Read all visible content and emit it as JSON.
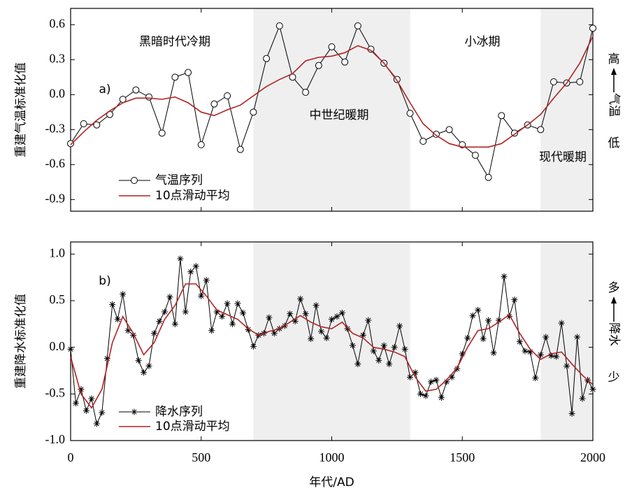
{
  "chart_data": [
    {
      "type": "line",
      "y_label": "重建气温标准化值",
      "annotations": [
        "黑暗时代冷期",
        "中世纪暖期",
        "小冰期",
        "现代暖期",
        "a)"
      ],
      "side_label": {
        "high": "高",
        "name": "气温",
        "low": "低"
      },
      "xlim": [
        0,
        2000
      ],
      "xticks": [
        0,
        500,
        1000,
        1500,
        2000
      ],
      "show_xtick_labels": false,
      "ylim": [
        -1.0,
        0.74
      ],
      "yticks": [
        0.6,
        0.3,
        {
          "value": 0,
          "label": "0.0"
        },
        -0.3,
        -0.6,
        -0.9
      ],
      "shaded_periods": [
        {
          "start": 700,
          "end": 1300
        },
        {
          "start": 1800,
          "end": 2000
        }
      ],
      "series": [
        {
          "name": "气温序列",
          "color": "#000000",
          "marker": "circle",
          "x": [
            0,
            50,
            100,
            150,
            200,
            250,
            300,
            350,
            400,
            450,
            500,
            550,
            600,
            650,
            700,
            750,
            800,
            850,
            900,
            950,
            1000,
            1050,
            1100,
            1150,
            1200,
            1250,
            1300,
            1350,
            1400,
            1450,
            1500,
            1550,
            1600,
            1650,
            1700,
            1750,
            1800,
            1850,
            1900,
            1950,
            2000
          ],
          "values": [
            -0.42,
            -0.25,
            -0.26,
            -0.17,
            -0.04,
            0.04,
            -0.02,
            -0.33,
            0.15,
            0.19,
            -0.43,
            -0.08,
            -0.01,
            -0.47,
            -0.15,
            0.31,
            0.59,
            0.15,
            0.02,
            0.25,
            0.41,
            0.28,
            0.59,
            0.39,
            0.27,
            0.13,
            -0.16,
            -0.4,
            -0.34,
            -0.3,
            -0.43,
            -0.52,
            -0.71,
            -0.18,
            -0.33,
            -0.26,
            -0.3,
            0.11,
            0.1,
            0.11,
            0.57
          ]
        },
        {
          "name": "10点滑动平均",
          "color": "#b22222",
          "marker": "none",
          "x": [
            0,
            50,
            100,
            150,
            200,
            250,
            300,
            350,
            400,
            450,
            500,
            550,
            600,
            650,
            700,
            750,
            800,
            850,
            900,
            950,
            1000,
            1050,
            1100,
            1150,
            1200,
            1250,
            1300,
            1350,
            1400,
            1450,
            1500,
            1550,
            1600,
            1650,
            1700,
            1750,
            1800,
            1850,
            1900,
            1950,
            2000
          ],
          "values": [
            -0.43,
            -0.32,
            -0.22,
            -0.14,
            -0.07,
            -0.03,
            -0.03,
            -0.04,
            -0.02,
            -0.07,
            -0.15,
            -0.18,
            -0.13,
            -0.09,
            -0.01,
            0.07,
            0.13,
            0.18,
            0.29,
            0.32,
            0.33,
            0.36,
            0.42,
            0.38,
            0.27,
            0.12,
            -0.07,
            -0.25,
            -0.35,
            -0.42,
            -0.45,
            -0.45,
            -0.45,
            -0.42,
            -0.34,
            -0.26,
            -0.17,
            -0.03,
            0.1,
            0.27,
            0.5
          ]
        }
      ]
    },
    {
      "type": "line",
      "x_label": "年代/AD",
      "y_label": "重建降水标准化值",
      "annotations": [
        "b)"
      ],
      "side_label": {
        "high": "多",
        "name": "降水",
        "low": "少"
      },
      "xlim": [
        0,
        2000
      ],
      "xticks": [
        0,
        500,
        1000,
        1500,
        2000
      ],
      "show_xtick_labels": true,
      "ylim": [
        -1.0,
        1.13
      ],
      "yticks": [
        {
          "value": 1,
          "label": "1.0"
        },
        0.5,
        {
          "value": 0,
          "label": "0.0"
        },
        -0.5,
        {
          "value": -1,
          "label": "-1.0"
        }
      ],
      "shaded_periods": [
        {
          "start": 700,
          "end": 1300
        },
        {
          "start": 1800,
          "end": 2000
        }
      ],
      "series": [
        {
          "name": "降水序列",
          "color": "#000000",
          "marker": "star",
          "x": [
            0,
            20,
            40,
            60,
            80,
            100,
            120,
            140,
            160,
            180,
            200,
            220,
            240,
            260,
            280,
            300,
            320,
            340,
            360,
            380,
            400,
            420,
            440,
            460,
            480,
            500,
            520,
            540,
            560,
            580,
            600,
            620,
            640,
            660,
            680,
            700,
            720,
            740,
            760,
            780,
            800,
            820,
            840,
            860,
            880,
            900,
            920,
            940,
            960,
            980,
            1000,
            1020,
            1040,
            1060,
            1080,
            1100,
            1120,
            1140,
            1160,
            1180,
            1200,
            1220,
            1240,
            1260,
            1280,
            1300,
            1320,
            1340,
            1360,
            1380,
            1400,
            1420,
            1440,
            1460,
            1480,
            1500,
            1520,
            1540,
            1560,
            1580,
            1600,
            1620,
            1640,
            1660,
            1680,
            1700,
            1720,
            1740,
            1760,
            1780,
            1800,
            1820,
            1840,
            1860,
            1880,
            1900,
            1920,
            1940,
            1960,
            1980,
            2000
          ],
          "values": [
            -0.02,
            -0.6,
            -0.45,
            -0.68,
            -0.55,
            -0.82,
            -0.7,
            -0.12,
            0.46,
            0.3,
            0.57,
            0.18,
            0.13,
            -0.14,
            -0.27,
            -0.2,
            0.15,
            0.28,
            0.38,
            0.54,
            0.25,
            0.95,
            0.38,
            0.81,
            0.87,
            0.55,
            0.72,
            0.18,
            0.38,
            0.33,
            0.47,
            0.25,
            0.47,
            0.37,
            0.19,
            0.01,
            0.13,
            0.15,
            0.32,
            0.15,
            0.2,
            0.23,
            0.36,
            0.28,
            0.52,
            0.36,
            0.09,
            0.45,
            0.17,
            0.1,
            0.3,
            0.33,
            0.37,
            0.2,
            0.02,
            -0.18,
            0.13,
            0.29,
            -0.04,
            -0.14,
            0.02,
            -0.18,
            0.0,
            0.23,
            -0.02,
            -0.32,
            -0.27,
            -0.5,
            -0.52,
            -0.37,
            -0.35,
            -0.54,
            -0.37,
            -0.32,
            -0.23,
            -0.07,
            0.1,
            0.34,
            0.4,
            0.09,
            0.29,
            -0.06,
            0.29,
            0.76,
            0.33,
            0.51,
            0.06,
            -0.04,
            -0.05,
            -0.33,
            -0.08,
            0.11,
            -0.09,
            -0.1,
            0.26,
            -0.2,
            -0.71,
            0.11,
            -0.55,
            -0.35,
            -0.45
          ]
        },
        {
          "name": "10点滑动平均",
          "color": "#b22222",
          "marker": "none",
          "x": [
            0,
            40,
            80,
            120,
            160,
            200,
            240,
            280,
            320,
            360,
            400,
            440,
            480,
            520,
            560,
            600,
            640,
            680,
            720,
            760,
            800,
            840,
            880,
            920,
            960,
            1000,
            1040,
            1080,
            1120,
            1160,
            1200,
            1240,
            1280,
            1320,
            1360,
            1400,
            1440,
            1480,
            1520,
            1560,
            1600,
            1640,
            1680,
            1720,
            1760,
            1800,
            1840,
            1880,
            1920,
            1960,
            2000
          ],
          "values": [
            -0.1,
            -0.5,
            -0.65,
            -0.45,
            0.05,
            0.33,
            0.15,
            -0.08,
            0.05,
            0.3,
            0.45,
            0.68,
            0.68,
            0.55,
            0.4,
            0.35,
            0.3,
            0.2,
            0.13,
            0.17,
            0.2,
            0.27,
            0.34,
            0.27,
            0.22,
            0.2,
            0.27,
            0.15,
            0.1,
            0.0,
            -0.02,
            -0.05,
            -0.1,
            -0.32,
            -0.47,
            -0.45,
            -0.35,
            -0.22,
            0.0,
            0.18,
            0.2,
            0.27,
            0.35,
            0.15,
            -0.02,
            -0.13,
            -0.07,
            -0.05,
            -0.18,
            -0.3,
            -0.4
          ]
        }
      ]
    }
  ]
}
